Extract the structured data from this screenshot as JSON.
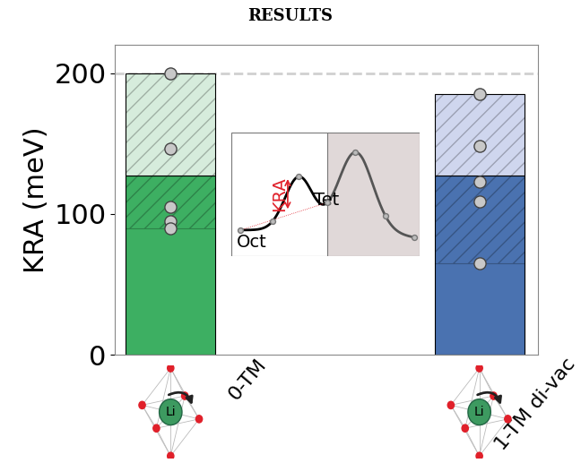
{
  "chart_data": {
    "type": "bar",
    "title": "RESULTS",
    "y_label": "KRA (meV)",
    "categories": [
      "0-TM",
      "1-TM di-vac"
    ],
    "values": [
      127,
      127
    ],
    "ranges": [
      [
        90,
        200
      ],
      [
        65,
        185
      ]
    ],
    "points": [
      [
        200,
        146,
        105,
        95,
        90
      ],
      [
        185,
        148,
        123,
        109,
        65
      ]
    ],
    "colors": [
      "#3daf62",
      "#4a72b0"
    ],
    "range_colors": [
      "#d6ecdc",
      "#cfd6ee"
    ],
    "reference_line": 200,
    "ylim": [
      0,
      220
    ],
    "yticks": [
      0,
      100,
      200
    ],
    "grid": false,
    "inset": {
      "labels": [
        "KRA",
        "Oct",
        "Tet"
      ]
    },
    "icon_label": "Li"
  }
}
